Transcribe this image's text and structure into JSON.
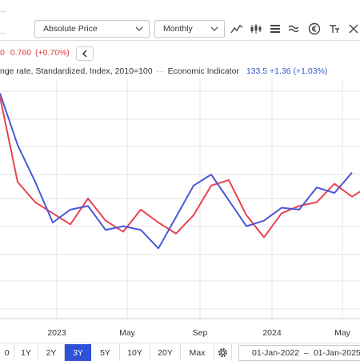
{
  "toolbar": {
    "price_type_label": "Absolute Price",
    "frequency_label": "Monthly",
    "icons": [
      "line-chart-icon",
      "candlestick-icon",
      "bars-icon",
      "wave-icon",
      "currency-icon",
      "text-format-icon",
      "close-icon"
    ]
  },
  "info": {
    "price_prefix": "0",
    "price_change": "0.760",
    "price_change_pct": "(+0.70%)"
  },
  "legend": {
    "series1_name": "nge rate, Standardized, Index, 2010=100",
    "series2_name": "Economic Indicator",
    "series2_value": "133.5",
    "series2_change": "+1.36",
    "series2_change_pct": "(+1.03%)"
  },
  "colors": {
    "series1": "#e8434d",
    "series2": "#4a58d8",
    "active": "#2f50d8",
    "grid": "#e6e6e6"
  },
  "chart_data": {
    "type": "line",
    "x_ticks": [
      "2023",
      "May",
      "Sep",
      "2024",
      "May"
    ],
    "series": [
      {
        "values": [
          120,
          74,
          63,
          57,
          51,
          65,
          53,
          47,
          59,
          52,
          46,
          56,
          72,
          75,
          56,
          44,
          57,
          61,
          63,
          73,
          66,
          72
        ]
      },
      {
        "name": "Economic Indicator",
        "values": [
          122,
          94,
          74,
          52,
          59,
          61,
          48,
          50,
          48,
          38,
          55,
          72,
          78,
          64,
          50,
          53,
          60,
          59,
          71,
          68,
          79
        ]
      }
    ],
    "grid": true
  },
  "range": {
    "buttons": [
      "0",
      "1Y",
      "2Y",
      "3Y",
      "5Y",
      "10Y",
      "20Y",
      "Max"
    ],
    "active": "3Y",
    "settings_icon": "gear-icon",
    "date_from": "01-Jan-2022",
    "date_sep": "–",
    "date_to": "01-Jan-2025"
  }
}
